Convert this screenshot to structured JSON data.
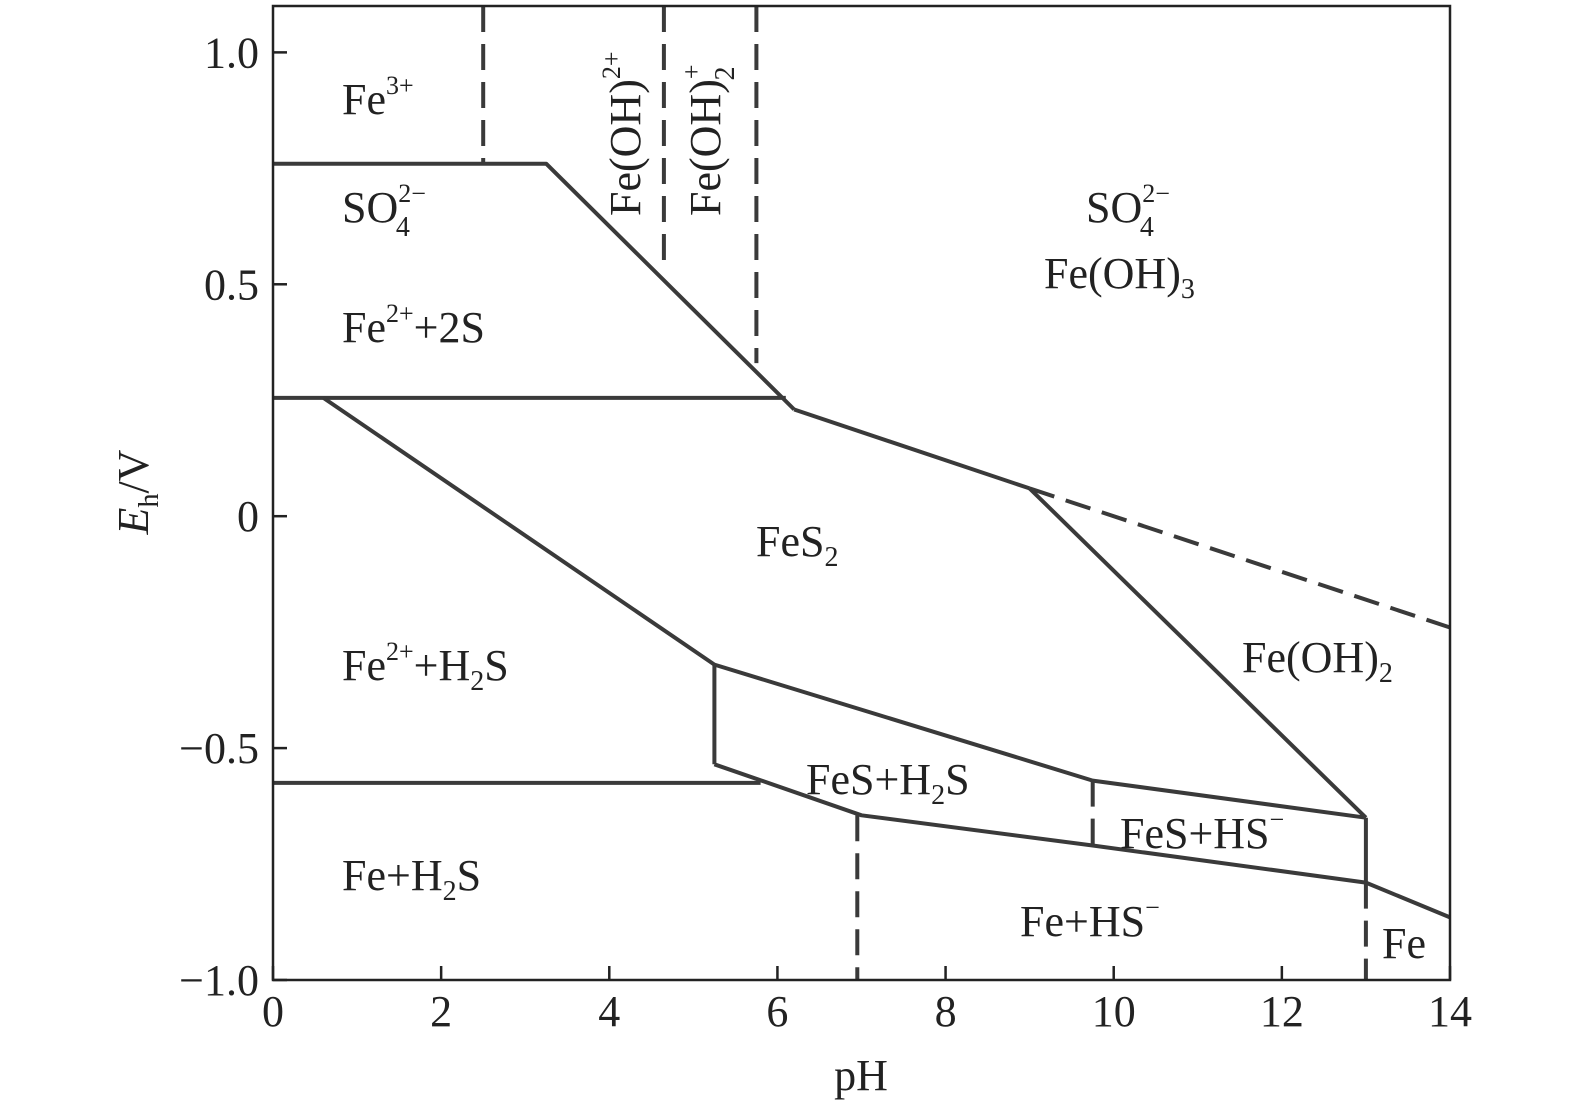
{
  "axes": {
    "x_label": "pH",
    "y_label_main": "E",
    "y_label_sub": "h",
    "y_label_unit": "/V",
    "x_range": [
      0,
      14
    ],
    "y_range": [
      -1.0,
      1.1
    ],
    "x_ticks": [
      {
        "v": 0,
        "t": "0"
      },
      {
        "v": 2,
        "t": "2"
      },
      {
        "v": 4,
        "t": "4"
      },
      {
        "v": 6,
        "t": "6"
      },
      {
        "v": 8,
        "t": "8"
      },
      {
        "v": 10,
        "t": "10"
      },
      {
        "v": 12,
        "t": "12"
      },
      {
        "v": 14,
        "t": "14"
      }
    ],
    "y_ticks": [
      {
        "v": 1.0,
        "t": "1.0"
      },
      {
        "v": 0.5,
        "t": "0.5"
      },
      {
        "v": 0,
        "t": "0"
      },
      {
        "v": -0.5,
        "t": "−0.5"
      },
      {
        "v": -1.0,
        "t": "−1.0"
      }
    ]
  },
  "boundaries": [
    {
      "id": "fe3-fe2s-solid",
      "style": "solid",
      "pts": [
        [
          0,
          0.76
        ],
        [
          3.25,
          0.76
        ],
        [
          6.2,
          0.23
        ]
      ]
    },
    {
      "id": "fe2s-fes2-solid",
      "style": "solid",
      "pts": [
        [
          0,
          0.255
        ],
        [
          6.1,
          0.255
        ]
      ]
    },
    {
      "id": "fes2-fe2h2s-solid",
      "style": "solid",
      "pts": [
        [
          0.6,
          0.255
        ],
        [
          5.25,
          -0.32
        ],
        [
          9.75,
          -0.57
        ],
        [
          13.0,
          -0.65
        ]
      ]
    },
    {
      "id": "fes2-feoh3-solid",
      "style": "solid",
      "pts": [
        [
          6.2,
          0.23
        ],
        [
          9.0,
          0.06
        ]
      ]
    },
    {
      "id": "fes2-feoh2-solid",
      "style": "solid",
      "pts": [
        [
          9.0,
          0.06
        ],
        [
          13.0,
          -0.65
        ]
      ]
    },
    {
      "id": "feoh3-feoh2-dash",
      "style": "dashed",
      "pts": [
        [
          9.0,
          0.06
        ],
        [
          14.0,
          -0.24
        ]
      ]
    },
    {
      "id": "fes-left-solid",
      "style": "solid",
      "pts": [
        [
          5.25,
          -0.32
        ],
        [
          5.25,
          -0.535
        ]
      ]
    },
    {
      "id": "fe2h2s-feh2s-solid",
      "style": "solid",
      "pts": [
        [
          0,
          -0.575
        ],
        [
          5.8,
          -0.575
        ]
      ]
    },
    {
      "id": "fes-bottom-solid",
      "style": "solid",
      "pts": [
        [
          5.25,
          -0.535
        ],
        [
          7.0,
          -0.645
        ],
        [
          9.75,
          -0.71
        ],
        [
          13.0,
          -0.79
        ],
        [
          14.0,
          -0.865
        ]
      ]
    },
    {
      "id": "fes-right-solid",
      "style": "solid",
      "pts": [
        [
          13.0,
          -0.65
        ],
        [
          13.0,
          -0.79
        ]
      ]
    },
    {
      "id": "fe3-feoh2p-dash",
      "style": "dashed",
      "pts": [
        [
          2.5,
          1.1
        ],
        [
          2.5,
          0.76
        ]
      ]
    },
    {
      "id": "feoh2p-feoh2plus-dash",
      "style": "dashed",
      "pts": [
        [
          4.65,
          1.1
        ],
        [
          4.65,
          0.53
        ]
      ]
    },
    {
      "id": "feoh2plus-feoh3-dash",
      "style": "dashed",
      "pts": [
        [
          5.75,
          1.1
        ],
        [
          5.75,
          0.33
        ]
      ]
    },
    {
      "id": "feh2s-fehs-dash",
      "style": "dashed",
      "pts": [
        [
          6.95,
          -0.645
        ],
        [
          6.95,
          -1.0
        ]
      ]
    },
    {
      "id": "fesh2s-feshs-dash",
      "style": "dashed",
      "pts": [
        [
          9.75,
          -0.57
        ],
        [
          9.75,
          -0.71
        ]
      ]
    },
    {
      "id": "fehs-fe-dash",
      "style": "dashed",
      "pts": [
        [
          13.0,
          -0.79
        ],
        [
          13.0,
          -1.0
        ]
      ]
    }
  ],
  "regions": {
    "fe3": {
      "base": "Fe",
      "sup": "3+"
    },
    "so4_left": {
      "base": "SO",
      "sub": "4",
      "sup": "2−"
    },
    "fe2_2s": {
      "base": "Fe",
      "sup": "2+",
      "tail": "+2S"
    },
    "feoh_2plus": {
      "base": "Fe(OH)",
      "sup": "2+"
    },
    "feoh2_plus": {
      "base": "Fe(OH)",
      "sub": "2",
      "sup": "+"
    },
    "so4_right": {
      "base": "SO",
      "sub": "4",
      "sup": "2−"
    },
    "feoh3": {
      "base": "Fe(OH)",
      "sub": "3"
    },
    "fes2": {
      "base": "FeS",
      "sub": "2"
    },
    "fe2_h2s": {
      "base": "Fe",
      "sup": "2+",
      "mid": "+H",
      "sub": "2",
      "tail": "S"
    },
    "feoh2": {
      "base": "Fe(OH)",
      "sub": "2"
    },
    "fes_h2s": {
      "base": "FeS+H",
      "sub": "2",
      "tail": "S"
    },
    "fes_hs": {
      "base": "FeS+HS",
      "sup": "−"
    },
    "fe_h2s": {
      "base": "Fe+H",
      "sub": "2",
      "tail": "S"
    },
    "fe_hs": {
      "base": "Fe+HS",
      "sup": "−"
    },
    "fe": {
      "base": "Fe"
    }
  }
}
